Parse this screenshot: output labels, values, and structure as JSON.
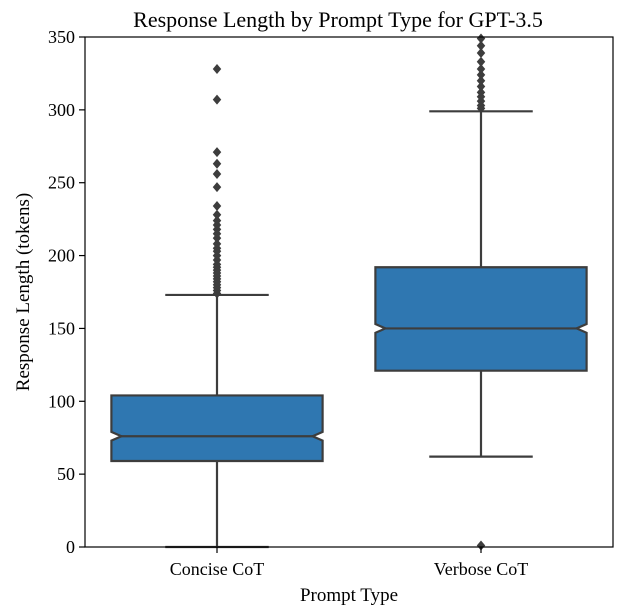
{
  "chart_data": {
    "type": "box",
    "title": "Response Length by Prompt Type for GPT-3.5",
    "xlabel": "Prompt Type",
    "ylabel": "Response Length (tokens)",
    "ylim": [
      0,
      350
    ],
    "yticks": [
      0,
      50,
      100,
      150,
      200,
      250,
      300,
      350
    ],
    "categories": [
      "Concise CoT",
      "Verbose CoT"
    ],
    "notched": true,
    "grid": false,
    "box_color": "#2f77b1",
    "line_color": "#3d3d3d",
    "boxes": [
      {
        "category": "Concise CoT",
        "whisker_low": 0,
        "q1": 59,
        "median": 76,
        "q3": 104,
        "whisker_high": 173,
        "notch_low": 73,
        "notch_high": 79,
        "outliers": [
          174,
          176,
          178,
          180,
          182,
          184,
          186,
          188,
          190,
          192,
          194,
          197,
          200,
          203,
          205,
          208,
          212,
          215,
          218,
          221,
          224,
          228,
          234,
          247,
          256,
          263,
          271,
          307,
          328
        ]
      },
      {
        "category": "Verbose CoT",
        "whisker_low": 62,
        "q1": 121,
        "median": 150,
        "q3": 192,
        "whisker_high": 299,
        "notch_low": 147,
        "notch_high": 153,
        "outliers": [
          1,
          301,
          303,
          306,
          309,
          312,
          316,
          320,
          324,
          328,
          333,
          339,
          344,
          349
        ]
      }
    ]
  }
}
